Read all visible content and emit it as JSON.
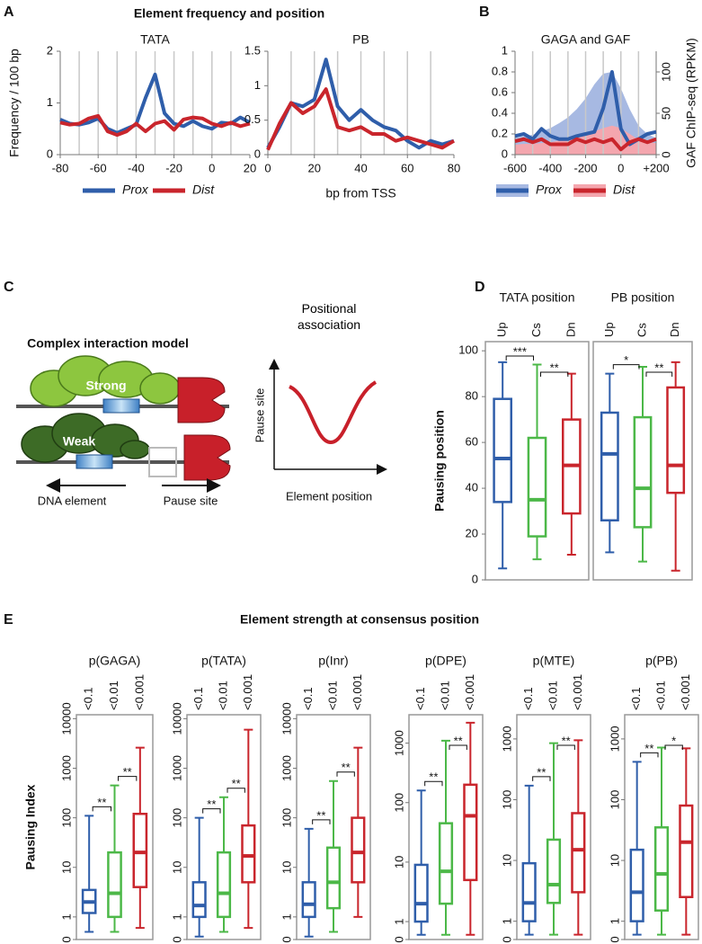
{
  "panel_labels": [
    "A",
    "B",
    "C",
    "D",
    "E"
  ],
  "group_titles": {
    "A": "Element frequency and position",
    "E": "Element strength at consensus position"
  },
  "diagram": {
    "title": "Complex interaction model",
    "strong": "Strong",
    "weak": "Weak",
    "dna_element": "DNA element",
    "pause_site": "Pause site",
    "plot_title": "Positional association",
    "plot_y": "Pause site",
    "plot_x": "Element position"
  },
  "chart_data": [
    {
      "type": "line",
      "title": "TATA",
      "ylabel": "Frequency / 100 bp",
      "x": [
        -80,
        -75,
        -70,
        -65,
        -60,
        -55,
        -50,
        -45,
        -40,
        -35,
        -30,
        -25,
        -20,
        -15,
        -10,
        -5,
        0,
        5,
        10,
        15,
        20
      ],
      "series": [
        {
          "name": "Prox",
          "color": "#2f5eaa",
          "values": [
            0.68,
            0.6,
            0.58,
            0.62,
            0.7,
            0.5,
            0.42,
            0.5,
            0.58,
            1.1,
            1.55,
            0.8,
            0.6,
            0.55,
            0.65,
            0.55,
            0.5,
            0.62,
            0.6,
            0.72,
            0.62
          ]
        },
        {
          "name": "Dist",
          "color": "#c9252c",
          "values": [
            0.62,
            0.58,
            0.6,
            0.7,
            0.75,
            0.45,
            0.38,
            0.45,
            0.6,
            0.45,
            0.6,
            0.65,
            0.48,
            0.68,
            0.72,
            0.7,
            0.6,
            0.55,
            0.62,
            0.55,
            0.6
          ]
        }
      ],
      "xlim": [
        -80,
        20
      ],
      "xticks": [
        -80,
        -60,
        -40,
        -20,
        0,
        20
      ],
      "xgrid": [
        -70,
        -60,
        -50,
        -40,
        -30,
        -20,
        -10,
        0,
        10
      ],
      "ylim": [
        0,
        2
      ],
      "yticks": [
        0,
        1,
        2
      ]
    },
    {
      "type": "line",
      "title": "PB",
      "xlabel": "bp from TSS",
      "x": [
        0,
        5,
        10,
        15,
        20,
        25,
        30,
        35,
        40,
        45,
        50,
        55,
        60,
        65,
        70,
        75,
        80
      ],
      "series": [
        {
          "name": "Prox",
          "color": "#2f5eaa",
          "values": [
            0.1,
            0.4,
            0.75,
            0.7,
            0.8,
            1.38,
            0.7,
            0.5,
            0.65,
            0.5,
            0.4,
            0.35,
            0.2,
            0.1,
            0.2,
            0.15,
            0.2
          ]
        },
        {
          "name": "Dist",
          "color": "#c9252c",
          "values": [
            0.07,
            0.45,
            0.75,
            0.6,
            0.7,
            0.95,
            0.4,
            0.35,
            0.4,
            0.3,
            0.3,
            0.2,
            0.25,
            0.2,
            0.15,
            0.1,
            0.2
          ]
        }
      ],
      "xlim": [
        0,
        80
      ],
      "xticks": [
        0,
        20,
        40,
        60,
        80
      ],
      "xgrid": [
        10,
        20,
        30,
        40,
        50,
        60,
        70
      ],
      "ylim": [
        0,
        1.5
      ],
      "yticks": [
        0,
        0.5,
        1,
        1.5
      ]
    },
    {
      "type": "line",
      "title": "GAGA and GAF",
      "y2label": "GAF ChIP-seq (RPKM)",
      "x": [
        -600,
        -550,
        -500,
        -450,
        -400,
        -350,
        -300,
        -250,
        -200,
        -150,
        -100,
        -50,
        0,
        50,
        100,
        150,
        200
      ],
      "series": [
        {
          "color": "#a7b9e2",
          "axis": "y2",
          "type": "area",
          "values": [
            20,
            22,
            24,
            28,
            32,
            38,
            45,
            55,
            68,
            85,
            98,
            100,
            80,
            55,
            35,
            25,
            20
          ]
        },
        {
          "color": "#f4a6ae",
          "axis": "y2",
          "type": "area",
          "values": [
            12,
            13,
            13,
            14,
            15,
            17,
            19,
            21,
            24,
            28,
            32,
            35,
            32,
            25,
            18,
            15,
            14
          ]
        },
        {
          "name": "Prox",
          "color": "#2f5eaa",
          "values": [
            0.18,
            0.2,
            0.15,
            0.25,
            0.18,
            0.15,
            0.15,
            0.18,
            0.2,
            0.22,
            0.45,
            0.8,
            0.25,
            0.1,
            0.15,
            0.2,
            0.22
          ]
        },
        {
          "name": "Dist",
          "color": "#c9252c",
          "values": [
            0.13,
            0.15,
            0.12,
            0.15,
            0.1,
            0.1,
            0.1,
            0.15,
            0.12,
            0.15,
            0.12,
            0.15,
            0.05,
            0.12,
            0.15,
            0.12,
            0.15
          ]
        }
      ],
      "xlim": [
        -600,
        200
      ],
      "xticks": [
        -600,
        -400,
        -200,
        0,
        {
          "value": 200,
          "label": "+200"
        }
      ],
      "xgrid": [
        -500,
        -400,
        -300,
        -200,
        -100,
        0,
        100
      ],
      "ylim": [
        0,
        1
      ],
      "yticks": [
        0,
        0.2,
        0.4,
        0.6,
        0.8,
        1
      ],
      "y2lim": [
        0,
        125
      ],
      "y2ticks": [
        0,
        50,
        100
      ]
    },
    {
      "type": "box",
      "title": "TATA position",
      "ylabel": "Pausing position",
      "categories": [
        "Up",
        "Cs",
        "Dn"
      ],
      "colors": [
        "#2f5eaa",
        "#4cb848",
        "#c9252c"
      ],
      "boxes": [
        {
          "min": 5,
          "q1": 34,
          "median": 53,
          "q3": 79,
          "max": 95
        },
        {
          "min": 9,
          "q1": 19,
          "median": 35,
          "q3": 62,
          "max": 94
        },
        {
          "min": 11,
          "q1": 29,
          "median": 50,
          "q3": 70,
          "max": 90
        }
      ],
      "significance": [
        {
          "from": 0,
          "to": 1,
          "label": "***"
        },
        {
          "from": 1,
          "to": 2,
          "label": "**"
        }
      ],
      "ylim": [
        0,
        104
      ],
      "yticks": [
        0,
        20,
        40,
        60,
        80,
        100
      ]
    },
    {
      "type": "box",
      "title": "PB position",
      "categories": [
        "Up",
        "Cs",
        "Dn"
      ],
      "colors": [
        "#2f5eaa",
        "#4cb848",
        "#c9252c"
      ],
      "boxes": [
        {
          "min": 12,
          "q1": 26,
          "median": 55,
          "q3": 73,
          "max": 90
        },
        {
          "min": 8,
          "q1": 23,
          "median": 40,
          "q3": 71,
          "max": 93
        },
        {
          "min": 4,
          "q1": 38,
          "median": 50,
          "q3": 84,
          "max": 95
        }
      ],
      "significance": [
        {
          "from": 0,
          "to": 1,
          "label": "*"
        },
        {
          "from": 1,
          "to": 2,
          "label": "**"
        }
      ],
      "ylim": [
        0,
        104
      ],
      "yticks": []
    },
    {
      "type": "box",
      "title": "p(GAGA)",
      "ylabel": "Pausing Index",
      "yscale": "log",
      "categories": [
        "<0.1",
        "<0.01",
        "<0.001"
      ],
      "colors": [
        "#2f5eaa",
        "#4cb848",
        "#c9252c"
      ],
      "boxes": [
        {
          "min": 0.5,
          "q1": 1.2,
          "median": 2,
          "q3": 3.5,
          "max": 110
        },
        {
          "min": 0.5,
          "q1": 1,
          "median": 3,
          "q3": 20,
          "max": 450
        },
        {
          "min": 0.6,
          "q1": 4,
          "median": 20,
          "q3": 120,
          "max": 2600
        }
      ],
      "significance": [
        {
          "from": 0,
          "to": 1,
          "label": "**"
        },
        {
          "from": 1,
          "to": 2,
          "label": "**"
        }
      ],
      "ylim": [
        0.35,
        12000
      ],
      "yticks": [
        {
          "value": 0,
          "label": "0"
        },
        1,
        10,
        100,
        1000,
        10000
      ]
    },
    {
      "type": "box",
      "title": "p(TATA)",
      "yscale": "log",
      "categories": [
        "<0.1",
        "<0.01",
        "<0.001"
      ],
      "colors": [
        "#2f5eaa",
        "#4cb848",
        "#c9252c"
      ],
      "boxes": [
        {
          "min": 0.4,
          "q1": 1,
          "median": 1.7,
          "q3": 5,
          "max": 100
        },
        {
          "min": 0.5,
          "q1": 1,
          "median": 3,
          "q3": 20,
          "max": 260
        },
        {
          "min": 0.6,
          "q1": 5,
          "median": 17,
          "q3": 70,
          "max": 6000
        }
      ],
      "significance": [
        {
          "from": 0,
          "to": 1,
          "label": "**"
        },
        {
          "from": 1,
          "to": 2,
          "label": "**"
        }
      ],
      "ylim": [
        0.35,
        12000
      ],
      "yticks": [
        {
          "value": 0,
          "label": "0"
        },
        1,
        10,
        100,
        1000,
        10000
      ]
    },
    {
      "type": "box",
      "title": "p(Inr)",
      "yscale": "log",
      "categories": [
        "<0.1",
        "<0.01",
        "<0.001"
      ],
      "colors": [
        "#2f5eaa",
        "#4cb848",
        "#c9252c"
      ],
      "boxes": [
        {
          "min": 0.4,
          "q1": 1,
          "median": 1.8,
          "q3": 5,
          "max": 60
        },
        {
          "min": 0.5,
          "q1": 1.5,
          "median": 5,
          "q3": 25,
          "max": 550
        },
        {
          "min": 1,
          "q1": 5,
          "median": 20,
          "q3": 100,
          "max": 2600
        }
      ],
      "significance": [
        {
          "from": 0,
          "to": 1,
          "label": "**"
        },
        {
          "from": 1,
          "to": 2,
          "label": "**"
        }
      ],
      "ylim": [
        0.35,
        12000
      ],
      "yticks": [
        {
          "value": 0,
          "label": "0"
        },
        1,
        10,
        100,
        1000,
        10000
      ]
    },
    {
      "type": "box",
      "title": "p(DPE)",
      "yscale": "log",
      "categories": [
        "<0.1",
        "<0.01",
        "<0.001"
      ],
      "colors": [
        "#2f5eaa",
        "#4cb848",
        "#c9252c"
      ],
      "boxes": [
        {
          "min": 0.6,
          "q1": 1,
          "median": 2,
          "q3": 9,
          "max": 160
        },
        {
          "min": 0.6,
          "q1": 2,
          "median": 7,
          "q3": 45,
          "max": 1100
        },
        {
          "min": 0.6,
          "q1": 5,
          "median": 60,
          "q3": 200,
          "max": 2200
        }
      ],
      "significance": [
        {
          "from": 0,
          "to": 1,
          "label": "**"
        },
        {
          "from": 1,
          "to": 2,
          "label": "**"
        }
      ],
      "ylim": [
        0.5,
        3000
      ],
      "yticks": [
        {
          "value": 0,
          "label": "0"
        },
        1,
        10,
        100,
        1000
      ]
    },
    {
      "type": "box",
      "title": "p(MTE)",
      "yscale": "log",
      "categories": [
        "<0.1",
        "<0.01",
        "<0.001"
      ],
      "colors": [
        "#2f5eaa",
        "#4cb848",
        "#c9252c"
      ],
      "boxes": [
        {
          "min": 0.6,
          "q1": 1,
          "median": 2,
          "q3": 9,
          "max": 170
        },
        {
          "min": 0.6,
          "q1": 2,
          "median": 4,
          "q3": 22,
          "max": 850
        },
        {
          "min": 0.6,
          "q1": 3,
          "median": 15,
          "q3": 60,
          "max": 950
        }
      ],
      "significance": [
        {
          "from": 0,
          "to": 1,
          "label": "**"
        },
        {
          "from": 1,
          "to": 2,
          "label": "**"
        }
      ],
      "ylim": [
        0.5,
        2500
      ],
      "yticks": [
        {
          "value": 0,
          "label": "0"
        },
        1,
        10,
        100,
        1000
      ]
    },
    {
      "type": "box",
      "title": "p(PB)",
      "yscale": "log",
      "categories": [
        "<0.1",
        "<0.01",
        "<0.001"
      ],
      "colors": [
        "#2f5eaa",
        "#4cb848",
        "#c9252c"
      ],
      "boxes": [
        {
          "min": 0.6,
          "q1": 1,
          "median": 3,
          "q3": 15,
          "max": 420
        },
        {
          "min": 0.6,
          "q1": 1.5,
          "median": 6,
          "q3": 35,
          "max": 720
        },
        {
          "min": 0.6,
          "q1": 2.5,
          "median": 20,
          "q3": 80,
          "max": 700
        }
      ],
      "significance": [
        {
          "from": 0,
          "to": 1,
          "label": "**"
        },
        {
          "from": 1,
          "to": 2,
          "label": "*"
        }
      ],
      "ylim": [
        0.5,
        2500
      ],
      "yticks": [
        {
          "value": 0,
          "label": "0"
        },
        1,
        10,
        100,
        1000
      ]
    }
  ]
}
